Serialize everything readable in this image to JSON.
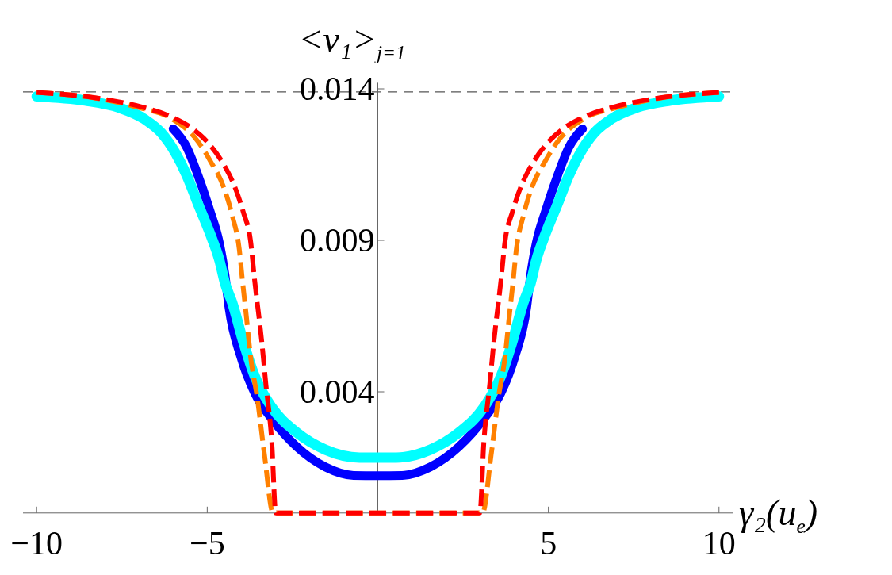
{
  "chart_data": {
    "type": "line",
    "xlabel": "γ₂(u$_{e}$)",
    "ylabel": "<ν₁>$_{j=1}$",
    "xlim": [
      -10.4,
      10.4
    ],
    "ylim": [
      0,
      0.0142
    ],
    "xticks": [
      -10,
      -5,
      5,
      10
    ],
    "yticks": [
      0.004,
      0.009,
      0.014
    ],
    "grid": false,
    "ref_lines": [
      {
        "axis": "y",
        "value": 0.0139,
        "color": "#555555",
        "line_style": "dashed"
      }
    ],
    "series": [
      {
        "color": "#0000ff",
        "line_style": "solid",
        "x": [
          -6,
          -5.6,
          -5.27,
          -4.93,
          -4.64,
          -4.48,
          -4.36,
          -4.02,
          -3.61,
          -3.11,
          -2.37,
          -1.54,
          -0.71,
          0,
          0.71,
          1.54,
          2.37,
          3.11,
          3.61,
          4.02,
          4.36,
          4.48,
          4.64,
          4.93,
          5.27,
          5.6,
          6
        ],
        "values": [
          0.01268,
          0.01207,
          0.01114,
          0.01001,
          0.00889,
          0.00786,
          0.00676,
          0.00517,
          0.00396,
          0.00311,
          0.00218,
          0.00152,
          0.00124,
          0.00123,
          0.00124,
          0.00152,
          0.00218,
          0.00311,
          0.00396,
          0.00517,
          0.00676,
          0.00786,
          0.00889,
          0.01001,
          0.01114,
          0.01207,
          0.01268
        ]
      },
      {
        "color": "#00ffff",
        "line_style": "solid",
        "x": [
          -10,
          -8.58,
          -7.59,
          -6.84,
          -6.34,
          -5.93,
          -5.6,
          -5.27,
          -4.93,
          -4.64,
          -4.48,
          -4.27,
          -3.94,
          -3.61,
          -3.11,
          -2.37,
          -1.54,
          -0.54,
          0,
          0.54,
          1.54,
          2.37,
          3.11,
          3.61,
          3.94,
          4.27,
          4.48,
          4.64,
          4.93,
          5.27,
          5.6,
          5.93,
          6.34,
          6.84,
          7.59,
          8.58,
          10
        ],
        "values": [
          0.01375,
          0.01361,
          0.01338,
          0.013,
          0.01254,
          0.01188,
          0.01114,
          0.0102,
          0.00926,
          0.00833,
          0.00759,
          0.00695,
          0.00564,
          0.00452,
          0.00349,
          0.00265,
          0.00209,
          0.00183,
          0.00183,
          0.00183,
          0.00209,
          0.00265,
          0.00349,
          0.00452,
          0.00564,
          0.00695,
          0.00759,
          0.00833,
          0.00926,
          0.0102,
          0.01114,
          0.01188,
          0.01254,
          0.013,
          0.01338,
          0.01361,
          0.01375
        ]
      },
      {
        "color": "#ff8000",
        "line_style": "dashed",
        "x": [
          -10,
          -8.3,
          -7,
          -6.1,
          -5.27,
          -4.9,
          -4.52,
          -4.27,
          -4.06,
          -3.96,
          -3.86,
          -3.73,
          -3.53,
          -3.32,
          -3.07,
          0,
          3.07,
          3.32,
          3.53,
          3.73,
          3.86,
          3.96,
          4.06,
          4.27,
          4.52,
          4.9,
          5.27,
          6.1,
          7,
          8.3,
          10
        ],
        "values": [
          0.01388,
          0.0137,
          0.01338,
          0.01305,
          0.01226,
          0.0116,
          0.01076,
          0.00983,
          0.0087,
          0.00759,
          0.00657,
          0.00517,
          0.00377,
          0.0019,
          0,
          0,
          0,
          0.0019,
          0.00377,
          0.00517,
          0.00657,
          0.00759,
          0.0087,
          0.00983,
          0.01076,
          0.0116,
          0.01226,
          0.01305,
          0.01338,
          0.0137,
          0.01388
        ]
      },
      {
        "color": "#ff0000",
        "line_style": "dashed",
        "x": [
          -10,
          -8.33,
          -6.92,
          -6.1,
          -5.43,
          -4.93,
          -4.52,
          -4.19,
          -3.94,
          -3.73,
          -3.61,
          -3.4,
          -3.28,
          -3.11,
          -2.99,
          2.99,
          3.11,
          3.28,
          3.4,
          3.61,
          3.73,
          3.94,
          4.19,
          4.52,
          4.93,
          5.43,
          6.1,
          6.92,
          8.33,
          10
        ],
        "values": [
          0.01388,
          0.01371,
          0.0134,
          0.0131,
          0.01268,
          0.01216,
          0.01151,
          0.01076,
          0.00992,
          0.00898,
          0.00768,
          0.00564,
          0.00424,
          0.00237,
          0,
          0,
          0.00237,
          0.00424,
          0.00564,
          0.00768,
          0.00898,
          0.00992,
          0.01076,
          0.01151,
          0.01216,
          0.01268,
          0.0131,
          0.0134,
          0.01371,
          0.01388
        ]
      }
    ]
  }
}
